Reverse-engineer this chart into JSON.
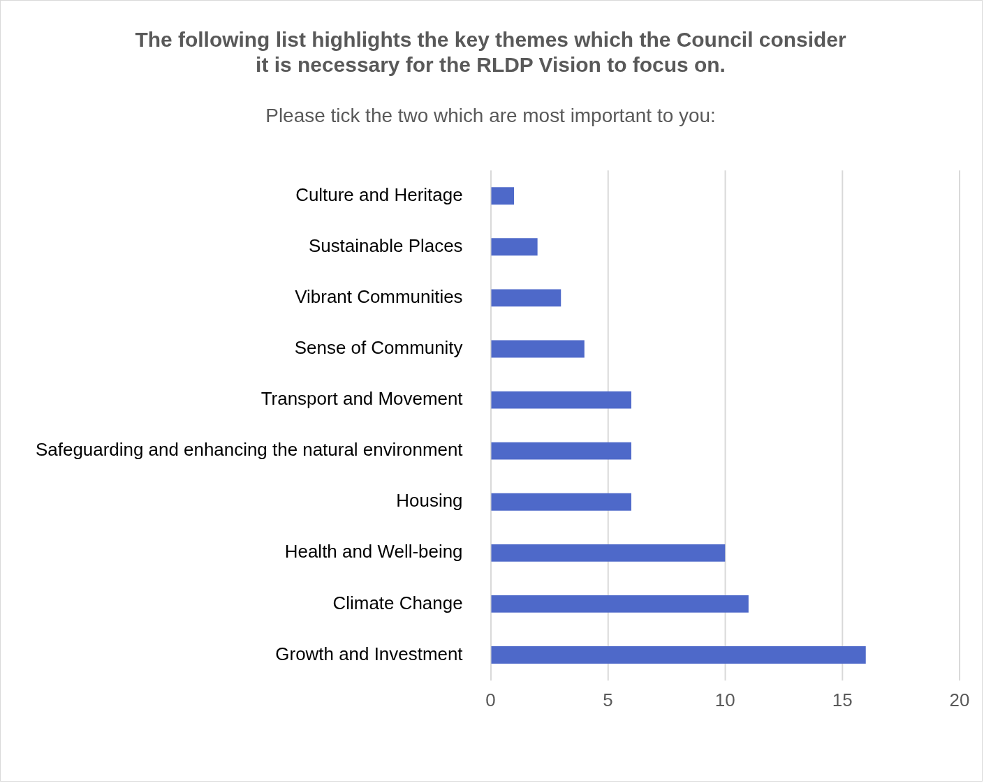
{
  "chart_data": {
    "type": "bar",
    "orientation": "horizontal",
    "title": "The following list highlights the key themes which the Council consider\nit is necessary for the RLDP Vision to focus on.",
    "subtitle": "Please tick the two which are most important to you:",
    "categories": [
      "Culture and Heritage",
      "Sustainable Places",
      "Vibrant Communities",
      "Sense of Community",
      "Transport and Movement",
      "Safeguarding and enhancing the natural environment",
      "Housing",
      "Health and Well-being",
      "Climate Change",
      "Growth and Investment"
    ],
    "values": [
      1,
      2,
      3,
      4,
      6,
      6,
      6,
      10,
      11,
      16
    ],
    "color": "#4e69c9",
    "xlim": [
      0,
      20
    ],
    "xticks": [
      0,
      5,
      10,
      15,
      20
    ],
    "grid": "x",
    "legend": false
  }
}
